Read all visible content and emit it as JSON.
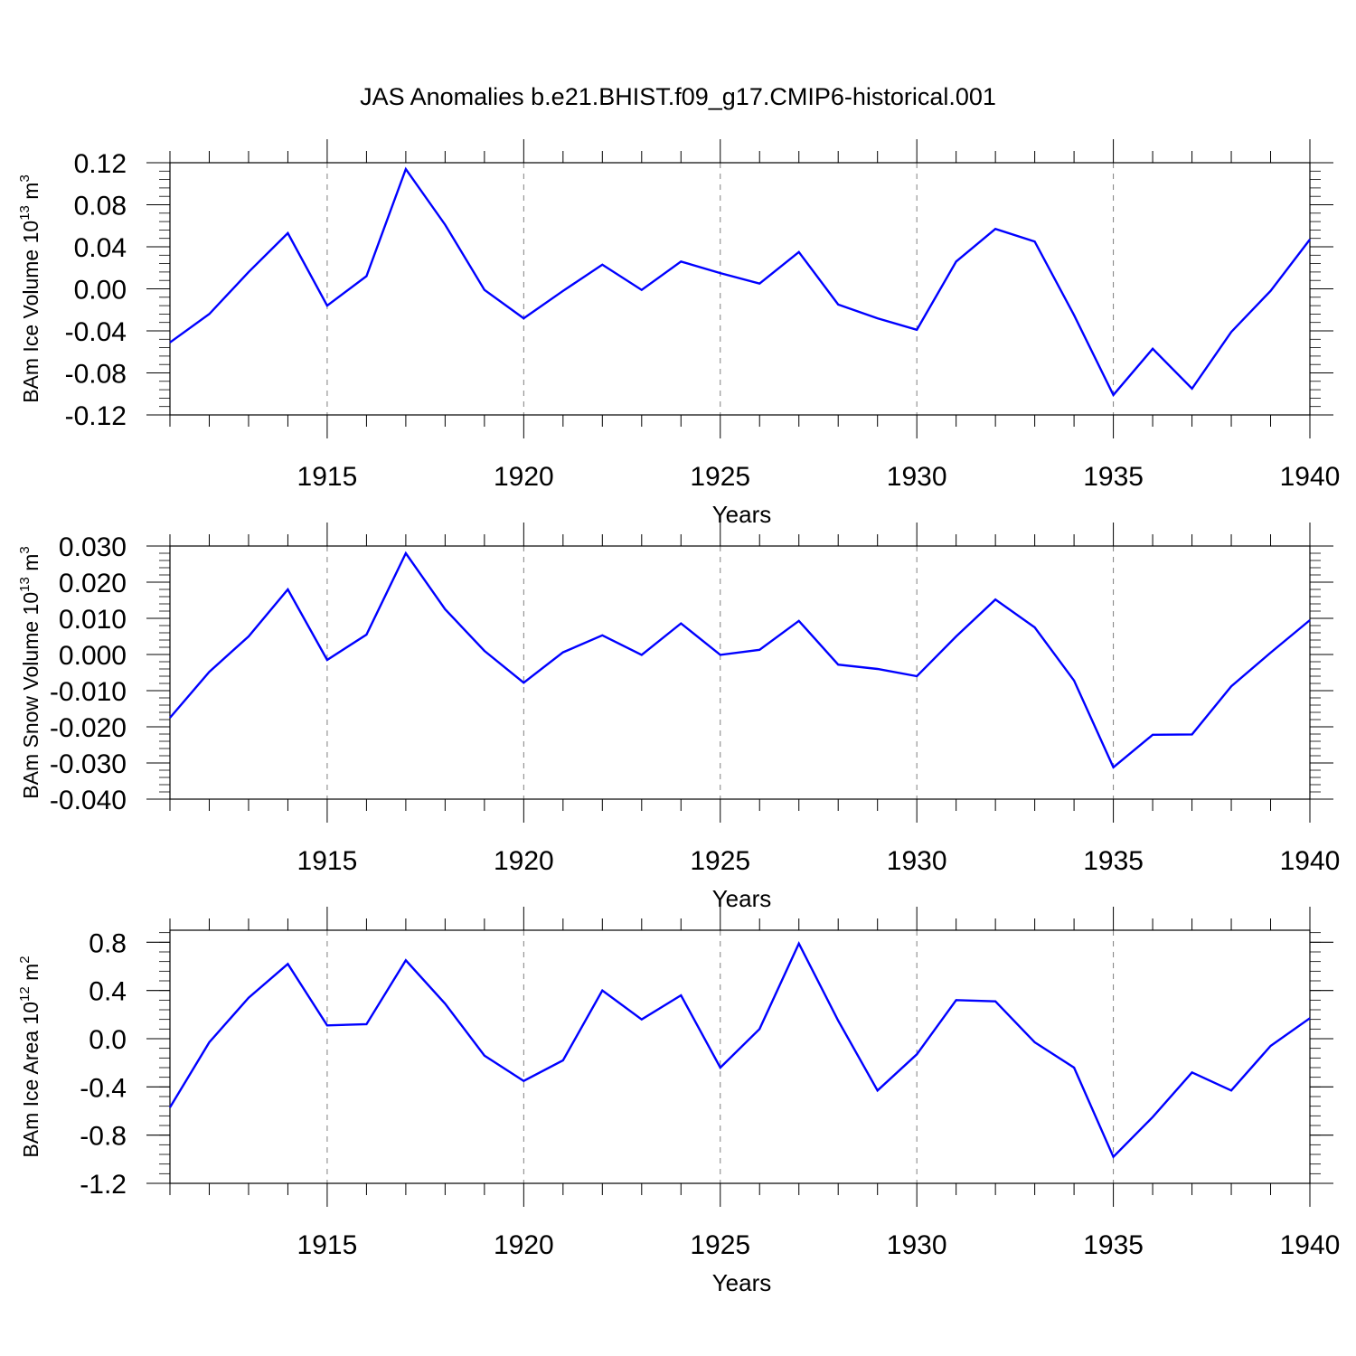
{
  "title": "JAS Anomalies b.e21.BHIST.f09_g17.CMIP6-historical.001",
  "chart_data": [
    {
      "type": "line",
      "ylabel": {
        "text": "BAm Ice Volume 10",
        "exp": "13",
        "unit": " m",
        "unit_exp": "3"
      },
      "xlabel": "Years",
      "xlim": [
        1911,
        1940
      ],
      "ylim": [
        -0.12,
        0.12
      ],
      "yticks": [
        "0.12",
        "0.08",
        "0.04",
        "0.00",
        "-0.04",
        "-0.08",
        "-0.12"
      ],
      "ytick_values": [
        0.12,
        0.08,
        0.04,
        0.0,
        -0.04,
        -0.08,
        -0.12
      ],
      "yminor_step": 0.008,
      "xticks": [
        "1915",
        "1920",
        "1925",
        "1930",
        "1935",
        "1940"
      ],
      "xtick_values": [
        1915,
        1920,
        1925,
        1930,
        1935,
        1940
      ],
      "grid": "vertical-dashed",
      "color": "#0000ff",
      "x": [
        1911,
        1912,
        1913,
        1914,
        1915,
        1916,
        1917,
        1918,
        1919,
        1920,
        1921,
        1922,
        1923,
        1924,
        1925,
        1926,
        1927,
        1928,
        1929,
        1930,
        1931,
        1932,
        1933,
        1934,
        1935,
        1936,
        1937,
        1938,
        1939,
        1940
      ],
      "values": [
        -0.051,
        -0.024,
        0.016,
        0.053,
        -0.016,
        0.012,
        0.114,
        0.061,
        -0.001,
        -0.028,
        -0.002,
        0.023,
        -0.001,
        0.026,
        0.015,
        0.005,
        0.035,
        -0.015,
        -0.028,
        -0.039,
        0.026,
        0.057,
        0.045,
        -0.025,
        -0.101,
        -0.057,
        -0.095,
        -0.041,
        -0.002,
        0.047
      ]
    },
    {
      "type": "line",
      "ylabel": {
        "text": "BAm Snow Volume 10",
        "exp": "13",
        "unit": " m",
        "unit_exp": "3"
      },
      "xlabel": "Years",
      "xlim": [
        1911,
        1940
      ],
      "ylim": [
        -0.04,
        0.03
      ],
      "yticks": [
        "0.030",
        "0.020",
        "0.010",
        "0.000",
        "-0.010",
        "-0.020",
        "-0.030",
        "-0.040"
      ],
      "ytick_values": [
        0.03,
        0.02,
        0.01,
        0.0,
        -0.01,
        -0.02,
        -0.03,
        -0.04
      ],
      "yminor_step": 0.002,
      "xticks": [
        "1915",
        "1920",
        "1925",
        "1930",
        "1935",
        "1940"
      ],
      "xtick_values": [
        1915,
        1920,
        1925,
        1930,
        1935,
        1940
      ],
      "grid": "vertical-dashed",
      "color": "#0000ff",
      "x": [
        1911,
        1912,
        1913,
        1914,
        1915,
        1916,
        1917,
        1918,
        1919,
        1920,
        1921,
        1922,
        1923,
        1924,
        1925,
        1926,
        1927,
        1928,
        1929,
        1930,
        1931,
        1932,
        1933,
        1934,
        1935,
        1936,
        1937,
        1938,
        1939,
        1940
      ],
      "values": [
        -0.0175,
        -0.0048,
        0.005,
        0.018,
        -0.0015,
        0.0055,
        0.028,
        0.0125,
        0.001,
        -0.0078,
        0.0006,
        0.0053,
        -0.0001,
        0.0086,
        -0.0001,
        0.0013,
        0.0093,
        -0.0028,
        -0.004,
        -0.006,
        0.005,
        0.0152,
        0.0075,
        -0.0072,
        -0.0312,
        -0.0222,
        -0.0221,
        -0.0088,
        0.0005,
        0.0095
      ]
    },
    {
      "type": "line",
      "ylabel": {
        "text": "BAm Ice Area 10",
        "exp": "12",
        "unit": " m",
        "unit_exp": "2"
      },
      "xlabel": "Years",
      "xlim": [
        1911,
        1940
      ],
      "ylim": [
        -1.2,
        0.9
      ],
      "yticks": [
        "0.8",
        "0.4",
        "0.0",
        "-0.4",
        "-0.8",
        "-1.2"
      ],
      "ytick_values": [
        0.8,
        0.4,
        0.0,
        -0.4,
        -0.8,
        -1.2
      ],
      "yminor_step": 0.08,
      "xticks": [
        "1915",
        "1920",
        "1925",
        "1930",
        "1935",
        "1940"
      ],
      "xtick_values": [
        1915,
        1920,
        1925,
        1930,
        1935,
        1940
      ],
      "grid": "vertical-dashed",
      "color": "#0000ff",
      "x": [
        1911,
        1912,
        1913,
        1914,
        1915,
        1916,
        1917,
        1918,
        1919,
        1920,
        1921,
        1922,
        1923,
        1924,
        1925,
        1926,
        1927,
        1928,
        1929,
        1930,
        1931,
        1932,
        1933,
        1934,
        1935,
        1936,
        1937,
        1938,
        1939,
        1940
      ],
      "values": [
        -0.57,
        -0.03,
        0.34,
        0.62,
        0.11,
        0.12,
        0.65,
        0.29,
        -0.14,
        -0.35,
        -0.18,
        0.4,
        0.16,
        0.36,
        -0.24,
        0.08,
        0.79,
        0.15,
        -0.43,
        -0.13,
        0.32,
        0.31,
        -0.03,
        -0.24,
        -0.98,
        -0.65,
        -0.28,
        -0.43,
        -0.06,
        0.17
      ]
    }
  ]
}
